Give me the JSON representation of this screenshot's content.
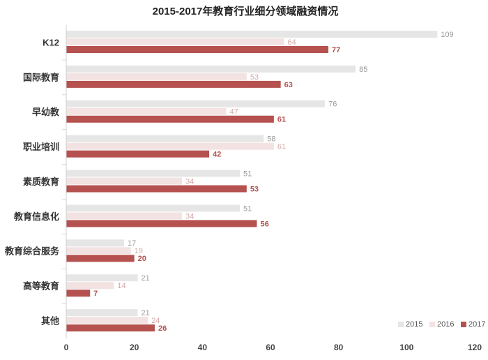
{
  "chart_data": {
    "type": "bar",
    "orientation": "horizontal",
    "title": "2015-2017年教育行业细分领域融资情况",
    "categories": [
      "K12",
      "国际教育",
      "早幼教",
      "职业培训",
      "素质教育",
      "教育信息化",
      "教育综合服务",
      "高等教育",
      "其他"
    ],
    "series": [
      {
        "name": "2015",
        "color": "#e6e6e6",
        "label_color": "#999999",
        "values": [
          109,
          85,
          76,
          58,
          51,
          51,
          17,
          21,
          21
        ]
      },
      {
        "name": "2016",
        "color": "#f2e3e2",
        "label_color": "#d3aaa8",
        "values": [
          64,
          53,
          47,
          61,
          34,
          34,
          19,
          14,
          24
        ]
      },
      {
        "name": "2017",
        "color": "#b5514f",
        "label_color": "#b5514f",
        "values": [
          77,
          63,
          61,
          42,
          53,
          56,
          20,
          7,
          26
        ]
      }
    ],
    "xlim": [
      0,
      120
    ],
    "x_ticks": [
      "0",
      "20",
      "40",
      "60",
      "80",
      "100",
      "120"
    ],
    "legend_position": "bottom-right",
    "grid": false
  }
}
